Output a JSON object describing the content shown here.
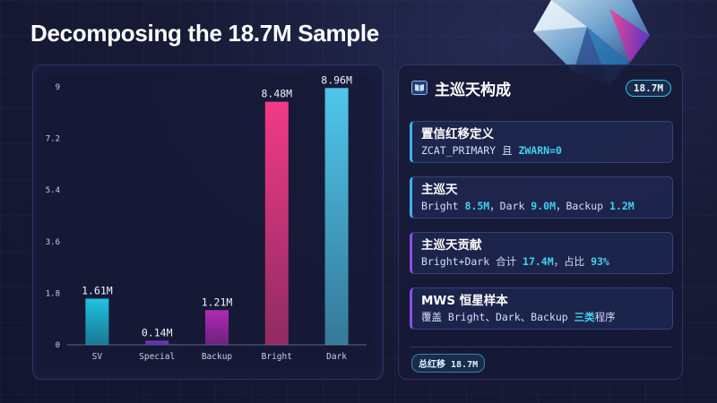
{
  "title": "Decomposing the 18.7M Sample",
  "chart_data": {
    "type": "bar",
    "categories": [
      "SV",
      "Special",
      "Backup",
      "Bright",
      "Dark"
    ],
    "values": [
      1.61,
      0.14,
      1.21,
      8.48,
      8.96
    ],
    "value_labels": [
      "1.61M",
      "0.14M",
      "1.21M",
      "8.48M",
      "8.96M"
    ],
    "yticks": [
      "0",
      "1.8",
      "3.6",
      "5.4",
      "7.2",
      "9"
    ],
    "ylim": [
      0,
      9
    ],
    "title": "",
    "xlabel": "",
    "ylabel": "",
    "bar_colors": [
      "#1fc3e0",
      "#7b3bd1",
      "#b02ab5",
      "#f23a86",
      "#4fc6ea"
    ]
  },
  "info": {
    "icon": "book-icon",
    "title": "主巡天构成",
    "badge": "18.7M",
    "cards": [
      {
        "title": "置信红移定义",
        "desc_parts": [
          {
            "text": "ZCAT_PRIMARY 且 ",
            "hl": false
          },
          {
            "text": "ZWARN=0",
            "hl": true
          }
        ]
      },
      {
        "title": "主巡天",
        "desc_parts": [
          {
            "text": "Bright ",
            "hl": false
          },
          {
            "text": "8.5M",
            "hl": true
          },
          {
            "text": "，Dark ",
            "hl": false
          },
          {
            "text": "9.0M",
            "hl": true
          },
          {
            "text": "，Backup ",
            "hl": false
          },
          {
            "text": "1.2M",
            "hl": true
          }
        ]
      },
      {
        "title": "主巡天贡献",
        "desc_parts": [
          {
            "text": "Bright+Dark 合计 ",
            "hl": false
          },
          {
            "text": "17.4M",
            "hl": true
          },
          {
            "text": "，占比 ",
            "hl": false
          },
          {
            "text": "93%",
            "hl": true
          }
        ]
      },
      {
        "title": "MWS 恒星样本",
        "desc_parts": [
          {
            "text": "覆盖 Bright、Dark、Backup ",
            "hl": false
          },
          {
            "text": "三类",
            "hl": true
          },
          {
            "text": "程序",
            "hl": false
          }
        ]
      }
    ],
    "footer_badge": "总红移 18.7M"
  }
}
